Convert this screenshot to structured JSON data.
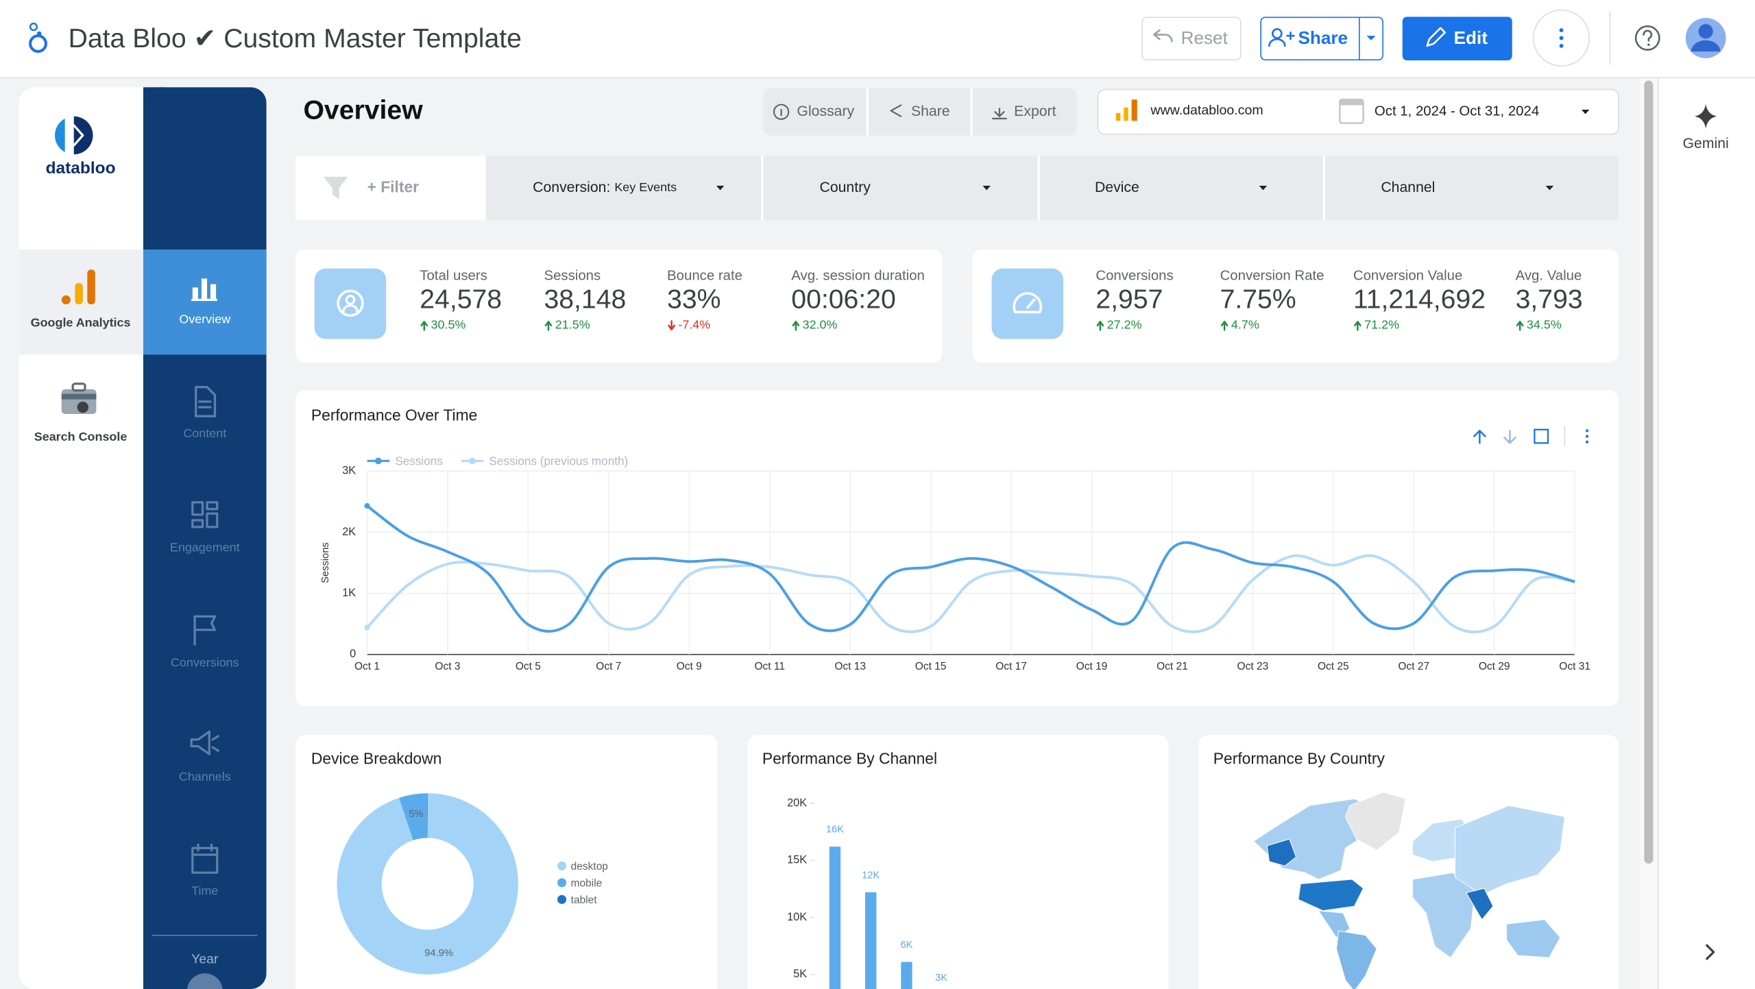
{
  "header": {
    "title": "Data Bloo ✔ Custom Master Template",
    "buttons": [
      "Reset",
      "Share",
      "Edit"
    ]
  },
  "right_panel": {
    "gemini": "Gemini"
  },
  "sources": {
    "logo": "databloo",
    "items": [
      "Google Analytics",
      "Search Console"
    ]
  },
  "nav": {
    "items": [
      "Overview",
      "Content",
      "Engagement",
      "Conversions",
      "Channels",
      "Time"
    ],
    "active": 0,
    "year": "Year"
  },
  "page": {
    "title": "Overview",
    "toolbar": [
      "Glossary",
      "Share",
      "Export"
    ],
    "site": "www.databloo.com",
    "date_range": "Oct 1, 2024 - Oct 31, 2024"
  },
  "filters": {
    "add": "+ Filter",
    "controls": [
      {
        "label": "Conversion:",
        "detail": "Key Events"
      },
      {
        "label": "Country"
      },
      {
        "label": "Device"
      },
      {
        "label": "Channel"
      }
    ]
  },
  "kpi_groups": [
    [
      {
        "label": "Total users",
        "value": "24,578",
        "change": "30.5%",
        "trend": "up"
      },
      {
        "label": "Sessions",
        "value": "38,148",
        "change": "21.5%",
        "trend": "up"
      },
      {
        "label": "Bounce rate",
        "value": "33%",
        "change": "-7.4%",
        "trend": "down"
      },
      {
        "label": "Avg. session duration",
        "value": "00:06:20",
        "change": "32.0%",
        "trend": "up"
      }
    ],
    [
      {
        "label": "Conversions",
        "value": "2,957",
        "change": "27.2%",
        "trend": "up"
      },
      {
        "label": "Conversion Rate",
        "value": "7.75%",
        "change": "4.7%",
        "trend": "up"
      },
      {
        "label": "Conversion Value",
        "value": "11,214,692",
        "change": "71.2%",
        "trend": "up"
      },
      {
        "label": "Avg. Value",
        "value": "3,793",
        "change": "34.5%",
        "trend": "up"
      }
    ]
  ],
  "performance_chart": {
    "type": "line",
    "title": "Performance Over Time",
    "y_label": "Sessions",
    "categories": [
      "Oct 1",
      null,
      "Oct 3",
      null,
      "Oct 5",
      null,
      "Oct 7",
      null,
      "Oct 9",
      null,
      "Oct 11",
      null,
      "Oct 13",
      null,
      "Oct 15",
      null,
      "Oct 17",
      null,
      "Oct 19",
      null,
      "Oct 21",
      null,
      "Oct 23",
      null,
      "Oct 25",
      null,
      "Oct 27",
      null,
      "Oct 29",
      null,
      "Oct 31"
    ],
    "series": [
      {
        "name": "Sessions",
        "color": "#4a9fe6",
        "values": [
          2430,
          1940,
          1680,
          1330,
          490,
          490,
          1430,
          1570,
          1520,
          1540,
          1320,
          490,
          490,
          1300,
          1430,
          1570,
          1440,
          1100,
          730,
          550,
          1740,
          1720,
          1500,
          1430,
          1190,
          510,
          510,
          1260,
          1370,
          1370,
          1190
        ]
      },
      {
        "name": "Sessions (previous month)",
        "color": "#b5dbf7",
        "values": [
          440,
          1130,
          1480,
          1480,
          1370,
          1280,
          510,
          510,
          1300,
          1440,
          1430,
          1300,
          1170,
          460,
          460,
          1190,
          1370,
          1330,
          1280,
          1150,
          460,
          460,
          1220,
          1610,
          1460,
          1610,
          1190,
          460,
          460,
          1220,
          1190
        ]
      }
    ],
    "ylim": [
      0,
      3000
    ],
    "yticks": [
      0,
      {
        "value": 1000,
        "label": "1K"
      },
      {
        "value": 2000,
        "label": "2K"
      },
      {
        "value": 3000,
        "label": "3K"
      }
    ],
    "grid": true
  },
  "device_chart": {
    "type": "donut",
    "title": "Device Breakdown",
    "categories": [
      "desktop",
      "mobile",
      "tablet"
    ],
    "values": [
      94.9,
      5,
      0.1
    ],
    "value_labels": [
      "94.9%",
      "5%",
      null
    ],
    "colors": [
      "#a3d4f7",
      "#5aabec",
      "#1a73c8"
    ]
  },
  "channel_chart": {
    "type": "bar",
    "title": "Performance By Channel",
    "categories": [
      null,
      null,
      null,
      null
    ],
    "values": [
      16200,
      12200,
      6100,
      3200
    ],
    "value_labels": [
      "16K",
      "12K",
      "6K",
      "3K"
    ],
    "color": "#5aabec",
    "ylim": [
      0,
      20000
    ],
    "yticks": [
      {
        "value": 5000,
        "label": "5K"
      },
      {
        "value": 10000,
        "label": "10K"
      },
      {
        "value": 15000,
        "label": "15K"
      },
      {
        "value": 20000,
        "label": "20K"
      }
    ]
  },
  "country_map": {
    "title": "Performance By Country"
  }
}
